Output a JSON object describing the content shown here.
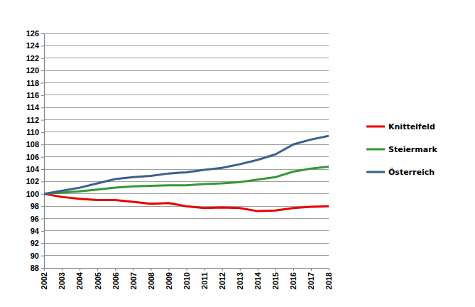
{
  "chart_data": {
    "type": "line",
    "categories": [
      "2002",
      "2003",
      "2004",
      "2005",
      "2006",
      "2007",
      "2008",
      "2009",
      "2010",
      "2011",
      "2012",
      "2013",
      "2014",
      "2015",
      "2016",
      "2017",
      "2018"
    ],
    "series": [
      {
        "name": "Knittelfeld",
        "color": "#e60000",
        "values": [
          100,
          99.5,
          99.2,
          99.0,
          99.0,
          98.7,
          98.4,
          98.5,
          98.0,
          97.7,
          97.8,
          97.7,
          97.2,
          97.3,
          97.7,
          97.9,
          98.0
        ]
      },
      {
        "name": "Steiermark",
        "color": "#339933",
        "values": [
          100,
          100.2,
          100.4,
          100.7,
          101.0,
          101.2,
          101.3,
          101.4,
          101.4,
          101.6,
          101.7,
          101.9,
          102.3,
          102.7,
          103.6,
          104.1,
          104.4
        ]
      },
      {
        "name": "Österreich",
        "color": "#3a5f8f",
        "values": [
          100,
          100.5,
          101.0,
          101.7,
          102.4,
          102.7,
          102.9,
          103.3,
          103.5,
          103.9,
          104.2,
          104.8,
          105.5,
          106.4,
          108.0,
          108.8,
          109.4
        ]
      }
    ],
    "ylim": [
      88,
      126
    ],
    "yticks": [
      88,
      90,
      92,
      94,
      96,
      98,
      100,
      102,
      104,
      106,
      108,
      110,
      112,
      114,
      116,
      118,
      120,
      122,
      124,
      126
    ],
    "grid": true,
    "legend": "right"
  }
}
